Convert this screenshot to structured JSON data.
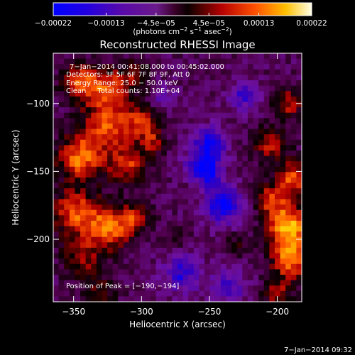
{
  "chart_data": {
    "type": "heatmap",
    "title": "Reconstructed RHESSI Image",
    "xlabel": "Heliocentric X (arcsec)",
    "ylabel": "Heliocentric Y (arcsec)",
    "xlim": [
      -365,
      -182
    ],
    "ylim": [
      -246,
      -63
    ],
    "xticks": [
      -350,
      -300,
      -250,
      -200
    ],
    "yticks": [
      -100,
      -150,
      -200
    ],
    "xtick_labels": [
      "−350",
      "−300",
      "−250",
      "−200"
    ],
    "ytick_labels": [
      "−100",
      "−150",
      "−200"
    ],
    "colorbar": {
      "ticks": [
        -0.00022,
        -0.00013,
        -4.5e-05,
        4.5e-05,
        0.00013,
        0.00022
      ],
      "tick_labels": [
        "−0.00022",
        "−0.00013",
        "−4.5e−05",
        "4.5e−05",
        "0.00013",
        "0.00022"
      ],
      "unit_parts": [
        "(photons cm",
        "−2",
        " s",
        "−1",
        " asec",
        "−2",
        ")"
      ]
    },
    "annotations": [
      "7−Jan−2014 00:41:08.000 to 00:45:02.000",
      "Detectors: 3F 5F 6F 7F 8F 9F, Att 0",
      "Energy Range: 25.0 − 50.0 keV",
      "Clean     Total counts: 1.10E+04",
      "Position of Peak = [−190,−194]"
    ],
    "peak_position": [
      -190,
      -194
    ],
    "value_range": [
      -0.00022,
      0.00022
    ],
    "colormap": [
      "#0000ff",
      "#3c00b4",
      "#6e10a0",
      "#50004c",
      "#0a0000",
      "#b40000",
      "#ff5a00",
      "#ffcc00",
      "#ffffe0"
    ],
    "intensity_blobs": [
      {
        "x": -345,
        "y": -85,
        "r": 10,
        "v": 0.00015
      },
      {
        "x": -325,
        "y": -88,
        "r": 10,
        "v": 0.00013
      },
      {
        "x": -305,
        "y": -80,
        "r": 8,
        "v": 0.0001
      },
      {
        "x": -325,
        "y": -115,
        "r": 12,
        "v": 0.00016
      },
      {
        "x": -300,
        "y": -112,
        "r": 9,
        "v": 0.00012
      },
      {
        "x": -345,
        "y": -140,
        "r": 12,
        "v": 0.00018
      },
      {
        "x": -310,
        "y": -145,
        "r": 10,
        "v": 0.00014
      },
      {
        "x": -292,
        "y": -128,
        "r": 7,
        "v": 0.0001
      },
      {
        "x": -350,
        "y": -180,
        "r": 12,
        "v": 0.00015
      },
      {
        "x": -325,
        "y": -192,
        "r": 12,
        "v": 0.00017
      },
      {
        "x": -305,
        "y": -185,
        "r": 8,
        "v": 0.00011
      },
      {
        "x": -345,
        "y": -215,
        "r": 10,
        "v": 0.0001
      },
      {
        "x": -330,
        "y": -240,
        "r": 8,
        "v": 8e-05
      },
      {
        "x": -192,
        "y": -100,
        "r": 8,
        "v": 0.00012
      },
      {
        "x": -205,
        "y": -130,
        "r": 9,
        "v": 0.00012
      },
      {
        "x": -188,
        "y": -155,
        "r": 9,
        "v": 0.00016
      },
      {
        "x": -205,
        "y": -170,
        "r": 8,
        "v": 0.00012
      },
      {
        "x": -192,
        "y": -190,
        "r": 11,
        "v": 0.00022
      },
      {
        "x": -190,
        "y": -215,
        "r": 10,
        "v": 0.00018
      },
      {
        "x": -200,
        "y": -240,
        "r": 8,
        "v": 0.0001
      },
      {
        "x": -260,
        "y": -160,
        "r": 6,
        "v": 6e-05
      },
      {
        "x": -230,
        "y": -205,
        "r": 6,
        "v": 7e-05
      },
      {
        "x": -275,
        "y": -200,
        "r": 6,
        "v": 6e-05
      },
      {
        "x": -250,
        "y": -130,
        "r": 9,
        "v": -0.00014
      },
      {
        "x": -255,
        "y": -150,
        "r": 9,
        "v": -0.00018
      },
      {
        "x": -240,
        "y": -175,
        "r": 10,
        "v": -0.00015
      },
      {
        "x": -225,
        "y": -95,
        "r": 8,
        "v": -0.0001
      },
      {
        "x": -270,
        "y": -225,
        "r": 10,
        "v": -0.00012
      },
      {
        "x": -235,
        "y": -235,
        "r": 9,
        "v": -0.0001
      },
      {
        "x": -285,
        "y": -95,
        "r": 7,
        "v": -8e-05
      }
    ]
  },
  "footer": {
    "timestamp": "7−Jan−2014 09:32"
  }
}
